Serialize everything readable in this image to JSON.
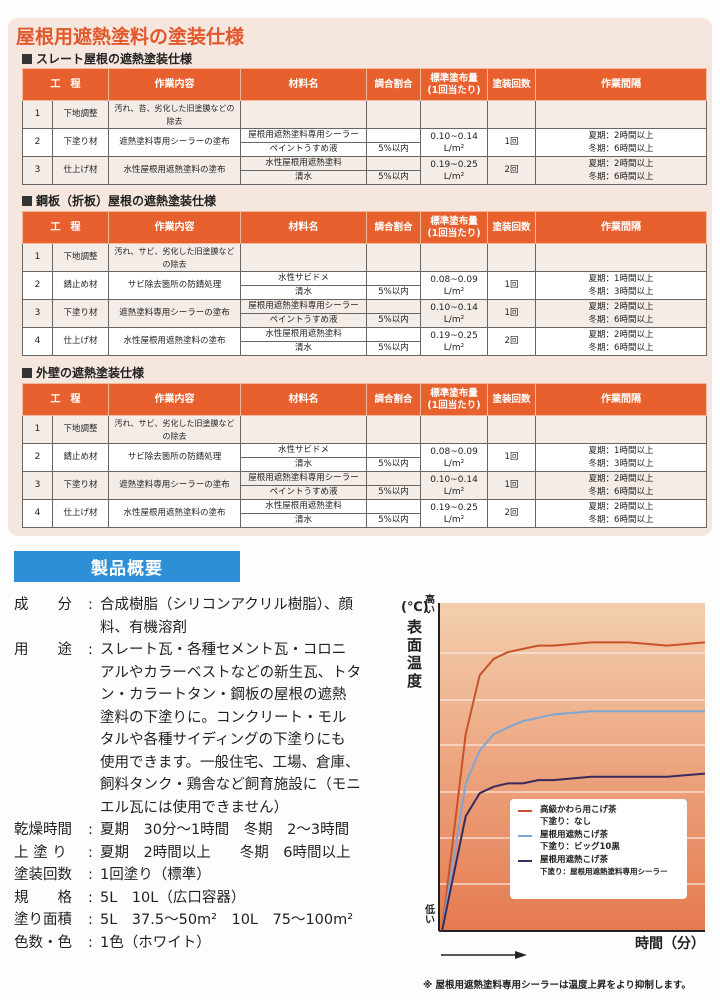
{
  "page": {
    "main_title": "屋根用遮熱塗料の塗装仕様"
  },
  "table_headers": {
    "process": "工　程",
    "work": "作業内容",
    "material": "材料名",
    "ratio": "調合割合",
    "amount_line1": "標準塗布量",
    "amount_line2": "(1回当たり)",
    "coats": "塗装回数",
    "interval": "作業間隔"
  },
  "sections": [
    {
      "heading": "スレート屋根の遮熱塗装仕様",
      "steps": [
        {
          "no": "1",
          "name": "下地調整",
          "work": "汚れ、苔、劣化した旧塗膜などの除去",
          "materials": [],
          "ratios": [],
          "amount": "",
          "unit": "",
          "coats": "",
          "interval": [
            "",
            ""
          ]
        },
        {
          "no": "2",
          "name": "下塗り材",
          "work": "遮熱塗料専用シーラーの塗布",
          "materials": [
            "屋根用遮熱塗料専用シーラー",
            "ペイントうすめ液"
          ],
          "ratios": [
            "",
            "5%以内"
          ],
          "amount": "0.10~0.14",
          "unit": "L/m²",
          "coats": "1回",
          "interval": [
            "夏期：2時間以上",
            "冬期：6時間以上"
          ]
        },
        {
          "no": "3",
          "name": "仕上げ材",
          "work": "水性屋根用遮熱塗料の塗布",
          "materials": [
            "水性屋根用遮熱塗料",
            "清水"
          ],
          "ratios": [
            "",
            "5%以内"
          ],
          "amount": "0.19~0.25",
          "unit": "L/m²",
          "coats": "2回",
          "interval": [
            "夏期：2時間以上",
            "冬期：6時間以上"
          ]
        }
      ]
    },
    {
      "heading": "鋼板（折板）屋根の遮熱塗装仕様",
      "steps": [
        {
          "no": "1",
          "name": "下地調整",
          "work": "汚れ、サビ、劣化した旧塗膜などの除去",
          "materials": [],
          "ratios": [],
          "amount": "",
          "unit": "",
          "coats": "",
          "interval": [
            "",
            ""
          ]
        },
        {
          "no": "2",
          "name": "錆止め材",
          "work": "サビ除去箇所の防錆処理",
          "materials": [
            "水性サビドメ",
            "清水"
          ],
          "ratios": [
            "",
            "5%以内"
          ],
          "amount": "0.08~0.09",
          "unit": "L/m²",
          "coats": "1回",
          "interval": [
            "夏期：1時間以上",
            "冬期：3時間以上"
          ]
        },
        {
          "no": "3",
          "name": "下塗り材",
          "work": "遮熱塗料専用シーラーの塗布",
          "materials": [
            "屋根用遮熱塗料専用シーラー",
            "ペイントうすめ液"
          ],
          "ratios": [
            "",
            "5%以内"
          ],
          "amount": "0.10~0.14",
          "unit": "L/m²",
          "coats": "1回",
          "interval": [
            "夏期：2時間以上",
            "冬期：6時間以上"
          ]
        },
        {
          "no": "4",
          "name": "仕上げ材",
          "work": "水性屋根用遮熱塗料の塗布",
          "materials": [
            "水性屋根用遮熱塗料",
            "清水"
          ],
          "ratios": [
            "",
            "5%以内"
          ],
          "amount": "0.19~0.25",
          "unit": "L/m²",
          "coats": "2回",
          "interval": [
            "夏期：2時間以上",
            "冬期：6時間以上"
          ]
        }
      ]
    },
    {
      "heading": "外壁の遮熱塗装仕様",
      "steps": [
        {
          "no": "1",
          "name": "下地調整",
          "work": "汚れ、サビ、劣化した旧塗膜などの除去",
          "materials": [],
          "ratios": [],
          "amount": "",
          "unit": "",
          "coats": "",
          "interval": [
            "",
            ""
          ]
        },
        {
          "no": "2",
          "name": "錆止め材",
          "work": "サビ除去箇所の防錆処理",
          "materials": [
            "水性サビドメ",
            "清水"
          ],
          "ratios": [
            "",
            "5%以内"
          ],
          "amount": "0.08~0.09",
          "unit": "L/m²",
          "coats": "1回",
          "interval": [
            "夏期：1時間以上",
            "冬期：3時間以上"
          ]
        },
        {
          "no": "3",
          "name": "下塗り材",
          "work": "遮熱塗料専用シーラーの塗布",
          "materials": [
            "屋根用遮熱塗料専用シーラー",
            "ペイントうすめ液"
          ],
          "ratios": [
            "",
            "5%以内"
          ],
          "amount": "0.10~0.14",
          "unit": "L/m²",
          "coats": "1回",
          "interval": [
            "夏期：2時間以上",
            "冬期：6時間以上"
          ]
        },
        {
          "no": "4",
          "name": "仕上げ材",
          "work": "水性屋根用遮熱塗料の塗布",
          "materials": [
            "水性屋根用遮熱塗料",
            "清水"
          ],
          "ratios": [
            "",
            "5%以内"
          ],
          "amount": "0.19~0.25",
          "unit": "L/m²",
          "coats": "2回",
          "interval": [
            "夏期：2時間以上",
            "冬期：6時間以上"
          ]
        }
      ]
    }
  ],
  "overview": {
    "banner": "製品概要",
    "rows": [
      {
        "label": "成　　分",
        "value": "合成樹脂（シリコンアクリル樹脂）、顔\n料、有機溶剤"
      },
      {
        "label": "用　　途",
        "value": "スレート瓦・各種セメント瓦・コロニ\nアルやカラーベストなどの新生瓦、トタ\nン・カラートタン・鋼板の屋根の遮熱\n塗料の下塗りに。コンクリート・モル\nタルや各種サイディングの下塗りにも\n使用できます。一般住宅、工場、倉庫、\n飼料タンク・鶏舎など飼育施設に（モニ\nエル瓦には使用できません）"
      },
      {
        "label": "乾燥時間",
        "value": "夏期　30分～1時間　冬期　2～3時間"
      },
      {
        "label": "上 塗 り",
        "value": "夏期　2時間以上　　冬期　6時間以上"
      },
      {
        "label": "塗装回数",
        "value": "1回塗り（標準）"
      },
      {
        "label": "規　　格",
        "value": "5L　10L（広口容器）"
      },
      {
        "label": "塗り面積",
        "value": "5L　37.5～50m²　10L　75～100m²"
      },
      {
        "label": "色数・色",
        "value": "1色（ホワイト）"
      }
    ]
  },
  "chart": {
    "y_unit": "(℃)",
    "y_label": "表面温度",
    "y_high": "高い",
    "y_low": "低い",
    "x_label": "時間（分）",
    "footnote": "※ 屋根用遮熱塗料専用シーラーは温度上昇をより抑制します。",
    "legend": [
      {
        "line1": "高級かわら用こげ茶",
        "line2": "下塗り：なし",
        "color": "#c8522a"
      },
      {
        "line1": "屋根用遮熱こげ茶",
        "line2": "下塗り：ビッグ10黒",
        "color": "#7fa6d2"
      },
      {
        "line1": "屋根用遮熱こげ茶",
        "line2": "下塗り：屋根用遮熱塗料専用シーラー",
        "color": "#3a2a5c"
      }
    ]
  },
  "chart_data": {
    "type": "line",
    "title": "",
    "xlabel": "時間（分）",
    "ylabel": "表面温度 (℃)",
    "y_axis_ticks": [
      "低い",
      "高い"
    ],
    "x": [
      0,
      1,
      2,
      3,
      4,
      6,
      8,
      10,
      15,
      20,
      25,
      30
    ],
    "series": [
      {
        "name": "高級かわら用こげ茶 / 下塗り：なし",
        "values": [
          0,
          60,
          78,
          83,
          85,
          86,
          87,
          87,
          88,
          88,
          87,
          88
        ]
      },
      {
        "name": "屋根用遮熱こげ茶 / 下塗り：ビッグ10黒",
        "values": [
          0,
          45,
          55,
          60,
          62,
          64,
          65,
          66,
          67,
          67,
          67,
          67
        ]
      },
      {
        "name": "屋根用遮熱こげ茶 / 下塗り：屋根用遮熱塗料専用シーラー",
        "values": [
          0,
          35,
          42,
          44,
          45,
          45,
          46,
          46,
          47,
          47,
          47,
          48
        ]
      }
    ],
    "grid": true,
    "legend_position": "lower-right inside",
    "note": "Qualitative chart; y-axis only labeled 低い/高い — values are relative estimates (0-100)."
  }
}
